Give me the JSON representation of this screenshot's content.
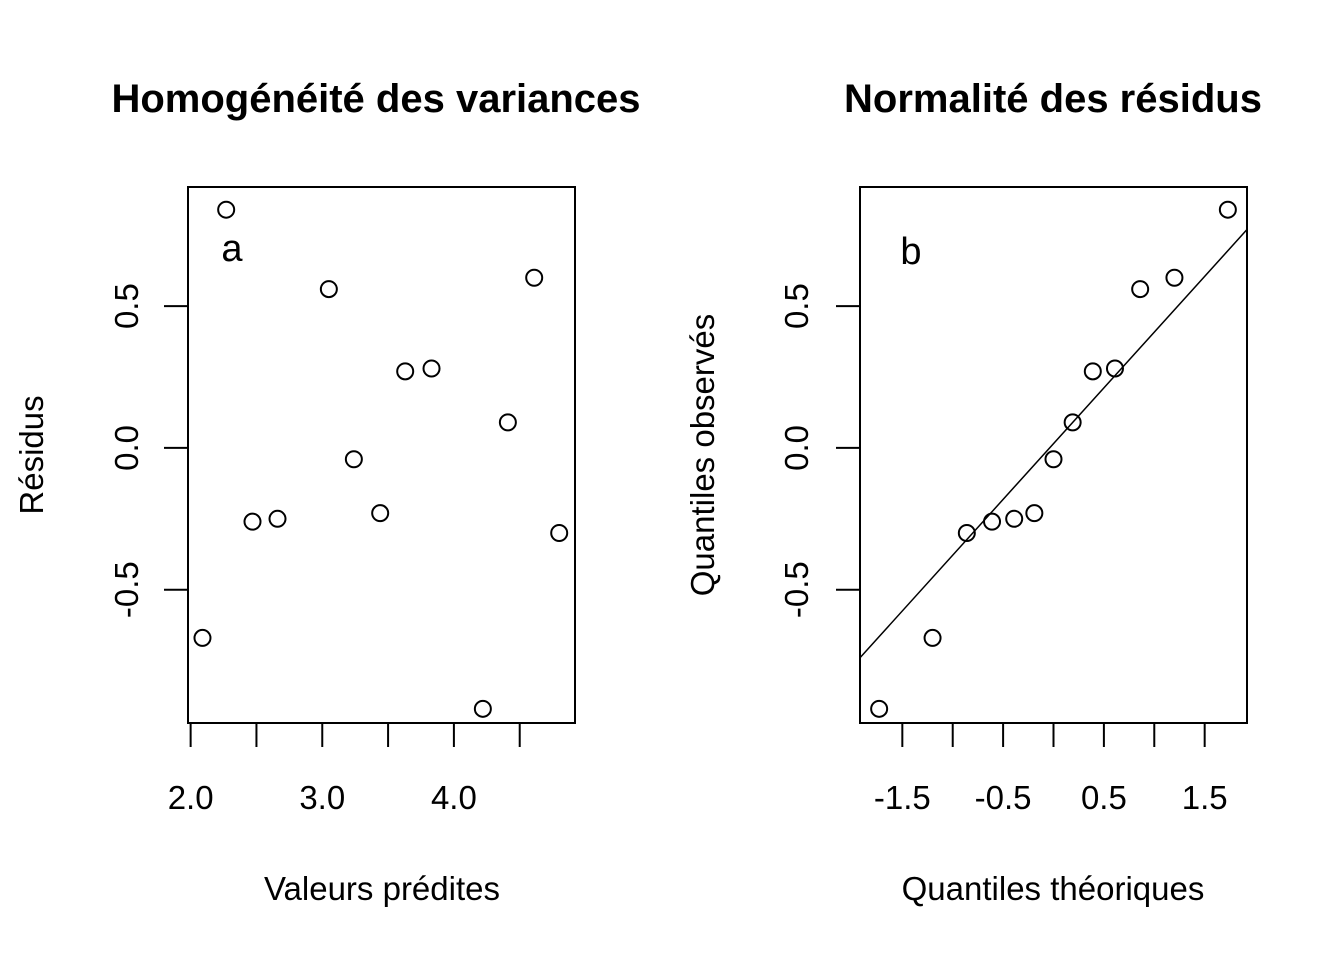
{
  "chart_data": [
    {
      "type": "scatter",
      "title": "Homogénéité des variances",
      "xlabel": "Valeurs prédites",
      "ylabel": "Résidus",
      "annotation": "a",
      "xlim": [
        1.98,
        4.92
      ],
      "ylim": [
        -0.97,
        0.92
      ],
      "xticks": [
        2.0,
        2.5,
        3.0,
        3.5,
        4.0,
        4.5
      ],
      "xtick_labels": [
        "2.0",
        "",
        "3.0",
        "",
        "4.0",
        ""
      ],
      "yticks": [
        -0.5,
        0.0,
        0.5
      ],
      "ytick_labels": [
        "-0.5",
        "0.0",
        "0.5"
      ],
      "grid": false,
      "x": [
        2.09,
        2.27,
        2.47,
        2.66,
        3.05,
        3.24,
        3.44,
        3.63,
        3.83,
        4.22,
        4.41,
        4.61,
        4.8
      ],
      "y": [
        -0.67,
        0.84,
        -0.26,
        -0.25,
        0.56,
        -0.04,
        -0.23,
        0.27,
        0.28,
        -0.92,
        0.09,
        0.6,
        -0.3
      ]
    },
    {
      "type": "scatter",
      "title": "Normalité des résidus",
      "xlabel": "Quantiles théoriques",
      "ylabel": "Quantiles observés",
      "annotation": "b",
      "xlim": [
        -1.92,
        1.92
      ],
      "ylim": [
        -0.97,
        0.92
      ],
      "xticks": [
        -1.5,
        -1.0,
        -0.5,
        0.0,
        0.5,
        1.0,
        1.5
      ],
      "xtick_labels": [
        "-1.5",
        "",
        "-0.5",
        "",
        "0.5",
        "",
        "1.5"
      ],
      "yticks": [
        -0.5,
        0.0,
        0.5
      ],
      "ytick_labels": [
        "-0.5",
        "0.0",
        "0.5"
      ],
      "grid": false,
      "x": [
        -1.73,
        -1.2,
        -0.86,
        -0.61,
        -0.39,
        -0.19,
        0.0,
        0.19,
        0.39,
        0.61,
        0.86,
        1.2,
        1.73
      ],
      "y": [
        -0.92,
        -0.67,
        -0.3,
        -0.26,
        -0.25,
        -0.23,
        -0.04,
        0.09,
        0.27,
        0.28,
        0.56,
        0.6,
        0.84
      ],
      "reference_line": {
        "x": [
          -1.92,
          1.92
        ],
        "y": [
          -0.74,
          0.77
        ]
      }
    }
  ]
}
